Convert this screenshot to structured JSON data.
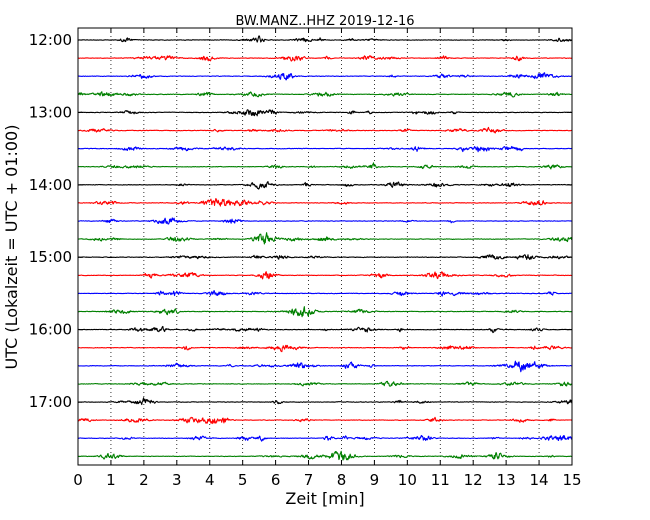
{
  "chart_data": {
    "type": "line",
    "title": "BW.MANZ..HHZ 2019-12-16",
    "xlabel": "Zeit  [min]",
    "ylabel": "UTC (Lokalzeit = UTC + 01:00)",
    "xlim": [
      0,
      15
    ],
    "x_ticks": [
      "0",
      "1",
      "2",
      "3",
      "4",
      "5",
      "6",
      "7",
      "8",
      "9",
      "10",
      "11",
      "12",
      "13",
      "14",
      "15"
    ],
    "y_ticks": [
      {
        "label": "12:00",
        "row": 0
      },
      {
        "label": "13:00",
        "row": 4
      },
      {
        "label": "14:00",
        "row": 8
      },
      {
        "label": "15:00",
        "row": 12
      },
      {
        "label": "16:00",
        "row": 16
      },
      {
        "label": "17:00",
        "row": 20
      }
    ],
    "trace_interval_min": 15,
    "trace_count": 24,
    "trace_colors": [
      "#000000",
      "#ff0000",
      "#0000ff",
      "#008000"
    ],
    "vertical_grid": "dotted at each minute"
  }
}
